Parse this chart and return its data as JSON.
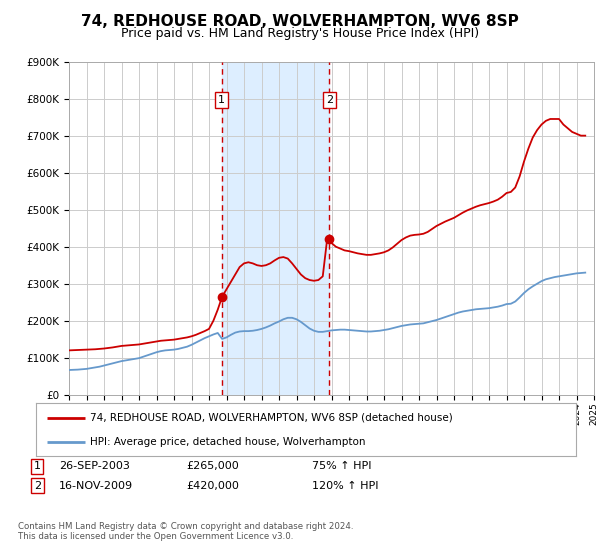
{
  "title": "74, REDHOUSE ROAD, WOLVERHAMPTON, WV6 8SP",
  "subtitle": "Price paid vs. HM Land Registry's House Price Index (HPI)",
  "title_fontsize": 11,
  "subtitle_fontsize": 9,
  "background_color": "#ffffff",
  "plot_bg_color": "#ffffff",
  "grid_color": "#cccccc",
  "xlim": [
    1995,
    2025
  ],
  "ylim": [
    0,
    900000
  ],
  "yticks": [
    0,
    100000,
    200000,
    300000,
    400000,
    500000,
    600000,
    700000,
    800000,
    900000
  ],
  "ytick_labels": [
    "£0",
    "£100K",
    "£200K",
    "£300K",
    "£400K",
    "£500K",
    "£600K",
    "£700K",
    "£800K",
    "£900K"
  ],
  "hpi_color": "#6699cc",
  "price_color": "#cc0000",
  "marker_color": "#cc0000",
  "purchase1_x": 2003.73,
  "purchase1_y": 265000,
  "purchase1_label": "1",
  "purchase2_x": 2009.88,
  "purchase2_y": 420000,
  "purchase2_label": "2",
  "vline_color": "#cc0000",
  "shade_color": "#ddeeff",
  "legend_label_price": "74, REDHOUSE ROAD, WOLVERHAMPTON, WV6 8SP (detached house)",
  "legend_label_hpi": "HPI: Average price, detached house, Wolverhampton",
  "table_row1": [
    "1",
    "26-SEP-2003",
    "£265,000",
    "75% ↑ HPI"
  ],
  "table_row2": [
    "2",
    "16-NOV-2009",
    "£420,000",
    "120% ↑ HPI"
  ],
  "footnote": "Contains HM Land Registry data © Crown copyright and database right 2024.\nThis data is licensed under the Open Government Licence v3.0.",
  "hpi_data_x": [
    1995.0,
    1995.25,
    1995.5,
    1995.75,
    1996.0,
    1996.25,
    1996.5,
    1996.75,
    1997.0,
    1997.25,
    1997.5,
    1997.75,
    1998.0,
    1998.25,
    1998.5,
    1998.75,
    1999.0,
    1999.25,
    1999.5,
    1999.75,
    2000.0,
    2000.25,
    2000.5,
    2000.75,
    2001.0,
    2001.25,
    2001.5,
    2001.75,
    2002.0,
    2002.25,
    2002.5,
    2002.75,
    2003.0,
    2003.25,
    2003.5,
    2003.75,
    2004.0,
    2004.25,
    2004.5,
    2004.75,
    2005.0,
    2005.25,
    2005.5,
    2005.75,
    2006.0,
    2006.25,
    2006.5,
    2006.75,
    2007.0,
    2007.25,
    2007.5,
    2007.75,
    2008.0,
    2008.25,
    2008.5,
    2008.75,
    2009.0,
    2009.25,
    2009.5,
    2009.75,
    2010.0,
    2010.25,
    2010.5,
    2010.75,
    2011.0,
    2011.25,
    2011.5,
    2011.75,
    2012.0,
    2012.25,
    2012.5,
    2012.75,
    2013.0,
    2013.25,
    2013.5,
    2013.75,
    2014.0,
    2014.25,
    2014.5,
    2014.75,
    2015.0,
    2015.25,
    2015.5,
    2015.75,
    2016.0,
    2016.25,
    2016.5,
    2016.75,
    2017.0,
    2017.25,
    2017.5,
    2017.75,
    2018.0,
    2018.25,
    2018.5,
    2018.75,
    2019.0,
    2019.25,
    2019.5,
    2019.75,
    2020.0,
    2020.25,
    2020.5,
    2020.75,
    2021.0,
    2021.25,
    2021.5,
    2021.75,
    2022.0,
    2022.25,
    2022.5,
    2022.75,
    2023.0,
    2023.25,
    2023.5,
    2023.75,
    2024.0,
    2024.25,
    2024.5
  ],
  "hpi_data_y": [
    67000,
    67500,
    68000,
    69000,
    70000,
    72000,
    74000,
    76000,
    79000,
    82000,
    85000,
    88000,
    91000,
    93000,
    95000,
    97000,
    99000,
    103000,
    107000,
    111000,
    115000,
    118000,
    120000,
    121000,
    122000,
    124000,
    127000,
    130000,
    135000,
    141000,
    147000,
    153000,
    158000,
    163000,
    167000,
    151000,
    155000,
    162000,
    168000,
    171000,
    172000,
    172000,
    173000,
    175000,
    178000,
    182000,
    187000,
    193000,
    198000,
    204000,
    208000,
    208000,
    204000,
    197000,
    188000,
    179000,
    173000,
    170000,
    170000,
    172000,
    174000,
    175000,
    176000,
    176000,
    175000,
    174000,
    173000,
    172000,
    171000,
    171000,
    172000,
    173000,
    175000,
    177000,
    180000,
    183000,
    186000,
    188000,
    190000,
    191000,
    192000,
    193000,
    196000,
    199000,
    202000,
    206000,
    210000,
    214000,
    218000,
    222000,
    225000,
    227000,
    229000,
    231000,
    232000,
    233000,
    234000,
    236000,
    238000,
    241000,
    245000,
    246000,
    252000,
    263000,
    275000,
    285000,
    293000,
    300000,
    307000,
    312000,
    315000,
    318000,
    320000,
    322000,
    324000,
    326000,
    328000,
    329000,
    330000
  ],
  "price_data_x": [
    1995.0,
    1995.25,
    1995.5,
    1995.75,
    1996.0,
    1996.25,
    1996.5,
    1996.75,
    1997.0,
    1997.25,
    1997.5,
    1997.75,
    1998.0,
    1998.25,
    1998.5,
    1998.75,
    1999.0,
    1999.25,
    1999.5,
    1999.75,
    2000.0,
    2000.25,
    2000.5,
    2000.75,
    2001.0,
    2001.25,
    2001.5,
    2001.75,
    2002.0,
    2002.25,
    2002.5,
    2002.75,
    2003.0,
    2003.25,
    2003.5,
    2003.75,
    2004.0,
    2004.25,
    2004.5,
    2004.75,
    2005.0,
    2005.25,
    2005.5,
    2005.75,
    2006.0,
    2006.25,
    2006.5,
    2006.75,
    2007.0,
    2007.25,
    2007.5,
    2007.75,
    2008.0,
    2008.25,
    2008.5,
    2008.75,
    2009.0,
    2009.25,
    2009.5,
    2009.75,
    2010.0,
    2010.25,
    2010.5,
    2010.75,
    2011.0,
    2011.25,
    2011.5,
    2011.75,
    2012.0,
    2012.25,
    2012.5,
    2012.75,
    2013.0,
    2013.25,
    2013.5,
    2013.75,
    2014.0,
    2014.25,
    2014.5,
    2014.75,
    2015.0,
    2015.25,
    2015.5,
    2015.75,
    2016.0,
    2016.25,
    2016.5,
    2016.75,
    2017.0,
    2017.25,
    2017.5,
    2017.75,
    2018.0,
    2018.25,
    2018.5,
    2018.75,
    2019.0,
    2019.25,
    2019.5,
    2019.75,
    2020.0,
    2020.25,
    2020.5,
    2020.75,
    2021.0,
    2021.25,
    2021.5,
    2021.75,
    2022.0,
    2022.25,
    2022.5,
    2022.75,
    2023.0,
    2023.25,
    2023.5,
    2023.75,
    2024.0,
    2024.25,
    2024.5
  ],
  "price_data_y": [
    120000,
    120500,
    121000,
    121500,
    122000,
    122500,
    123000,
    124000,
    125000,
    126500,
    128000,
    130000,
    132000,
    133000,
    134000,
    135000,
    136000,
    138000,
    140000,
    142000,
    144000,
    146000,
    147000,
    148000,
    149000,
    151000,
    153000,
    155000,
    158000,
    162000,
    167000,
    172000,
    178000,
    200000,
    230000,
    265000,
    285000,
    305000,
    325000,
    345000,
    355000,
    358000,
    355000,
    350000,
    348000,
    350000,
    355000,
    363000,
    370000,
    372000,
    368000,
    355000,
    340000,
    325000,
    315000,
    310000,
    308000,
    310000,
    320000,
    420000,
    410000,
    400000,
    395000,
    390000,
    388000,
    385000,
    382000,
    380000,
    378000,
    378000,
    380000,
    382000,
    385000,
    390000,
    398000,
    408000,
    418000,
    425000,
    430000,
    432000,
    433000,
    435000,
    440000,
    448000,
    456000,
    462000,
    468000,
    473000,
    478000,
    485000,
    492000,
    498000,
    503000,
    508000,
    512000,
    515000,
    518000,
    522000,
    527000,
    535000,
    545000,
    548000,
    560000,
    590000,
    630000,
    665000,
    695000,
    715000,
    730000,
    740000,
    745000,
    745000,
    745000,
    730000,
    720000,
    710000,
    705000,
    700000,
    700000
  ]
}
